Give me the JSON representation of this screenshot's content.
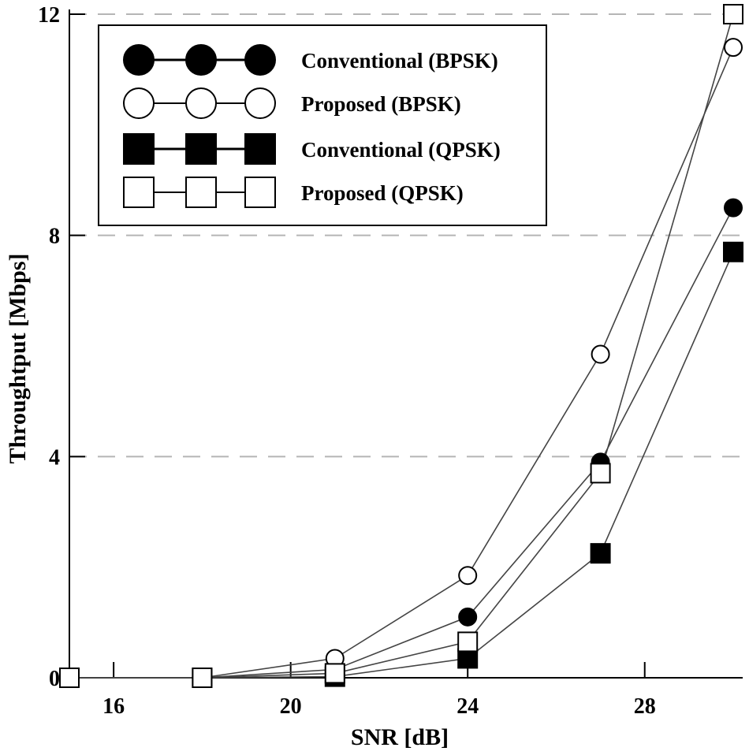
{
  "chart_data": {
    "type": "line",
    "title": "",
    "xlabel": "SNR [dB]",
    "ylabel": "Throughtput [Mbps]",
    "xlim": [
      15,
      30
    ],
    "ylim": [
      0,
      12
    ],
    "xticks": [
      16,
      20,
      24,
      28
    ],
    "yticks": [
      0,
      4,
      8,
      12
    ],
    "x_tick_labels": [
      "16",
      "20",
      "24",
      "28"
    ],
    "y_tick_labels": [
      "0",
      "4",
      "8",
      "12"
    ],
    "gridlines": "horizontal dashed at y = 4, 8, 12",
    "legend_position": "top-left",
    "series": [
      {
        "name": "Conventional (BPSK)",
        "marker": "filled-circle",
        "x": [
          15,
          18,
          21,
          24,
          27,
          30
        ],
        "y": [
          0,
          0,
          0.15,
          1.1,
          3.9,
          8.5
        ]
      },
      {
        "name": "Proposed (BPSK)",
        "marker": "open-circle",
        "x": [
          15,
          18,
          21,
          24,
          27,
          30
        ],
        "y": [
          0,
          0,
          0.35,
          1.85,
          5.85,
          11.4
        ]
      },
      {
        "name": "Conventional (QPSK)",
        "marker": "filled-square",
        "x": [
          15,
          18,
          21,
          24,
          27,
          30
        ],
        "y": [
          0,
          0,
          0.02,
          0.35,
          2.25,
          7.7
        ]
      },
      {
        "name": "Proposed (QPSK)",
        "marker": "open-square",
        "x": [
          15,
          18,
          21,
          24,
          27,
          30
        ],
        "y": [
          0,
          0,
          0.08,
          0.65,
          3.7,
          12.0
        ]
      }
    ]
  }
}
